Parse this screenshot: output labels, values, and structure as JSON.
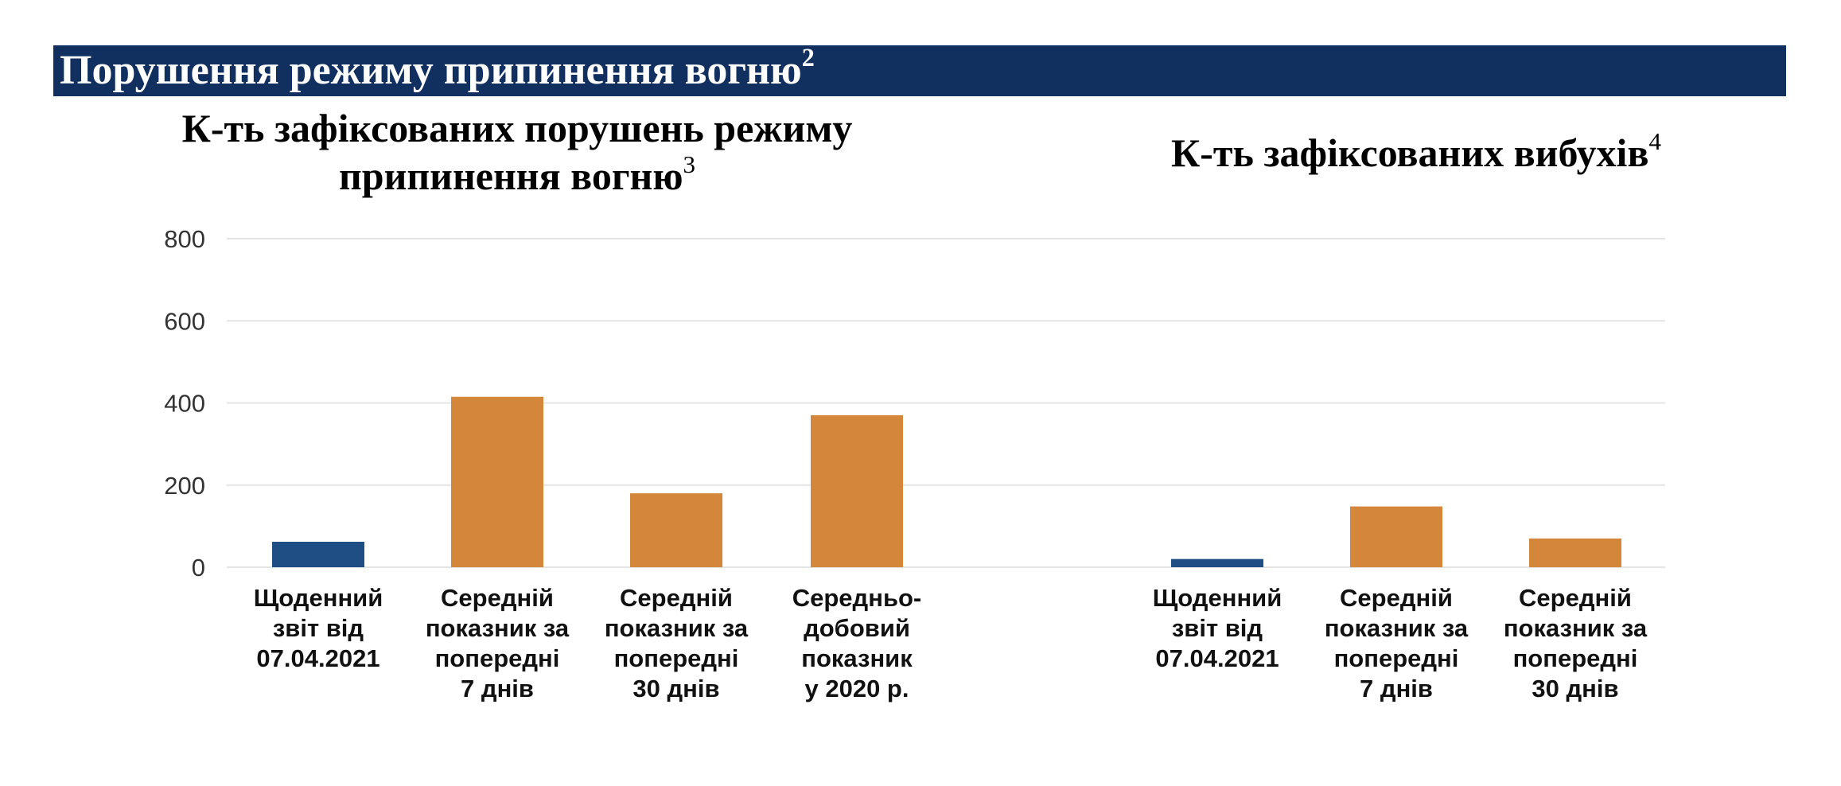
{
  "header": {
    "title": "Порушення режиму припинення вогню",
    "footnote": "2"
  },
  "chart_data": [
    {
      "type": "bar",
      "title_lines": [
        "К-ть зафіксованих порушень режиму",
        "припинення вогню"
      ],
      "title_footnote": "3",
      "categories": [
        [
          "Щоденний",
          "звіт від",
          "07.04.2021"
        ],
        [
          "Середній",
          "показник за",
          "попередні",
          "7 днів"
        ],
        [
          "Середній",
          "показник за",
          "попередні",
          "30 днів"
        ],
        [
          "Середньо-",
          "добовий",
          "показник",
          "у 2020 р."
        ]
      ],
      "values": [
        62,
        415,
        180,
        370
      ],
      "colors": [
        "#1f4e85",
        "#d4873a",
        "#d4873a",
        "#d4873a"
      ],
      "ylim": [
        0,
        800
      ],
      "yticks": [
        "0",
        "200",
        "400",
        "600",
        "800"
      ],
      "grid": true
    },
    {
      "type": "bar",
      "title_lines": [
        "К-ть зафіксованих вибухів"
      ],
      "title_footnote": "4",
      "categories": [
        [
          "Щоденний",
          "звіт від",
          "07.04.2021"
        ],
        [
          "Середній",
          "показник за",
          "попередні",
          "7 днів"
        ],
        [
          "Середній",
          "показник за",
          "попередні",
          "30 днів"
        ]
      ],
      "values": [
        20,
        148,
        70
      ],
      "colors": [
        "#1f4e85",
        "#d4873a",
        "#d4873a"
      ],
      "ylim": [
        0,
        800
      ],
      "grid": true
    }
  ]
}
